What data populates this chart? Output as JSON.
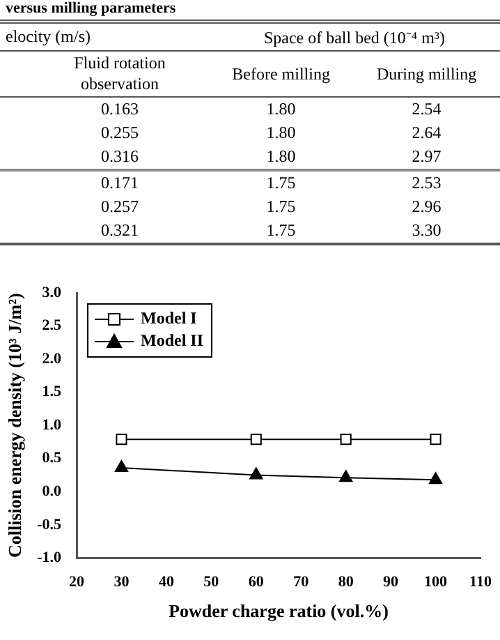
{
  "chart_data": [
    {
      "type": "other",
      "title": "versus milling parameters",
      "annotations": [
        "elocity (m/s)",
        "Space of ball bed (10⁻⁴ m³)",
        "Fluid rotation observation",
        "Before milling",
        "During milling",
        "0.163",
        "1.80",
        "2.54",
        "0.255",
        "1.80",
        "2.64",
        "0.316",
        "1.80",
        "2.97",
        "0.171",
        "1.75",
        "2.53",
        "0.257",
        "1.75",
        "2.96",
        "0.321",
        "1.75",
        "3.30"
      ]
    },
    {
      "type": "line",
      "xlabel": "Powder charge ratio (vol.%)",
      "ylabel": "Collision energy density (10³ J/m²)",
      "x": [
        30,
        60,
        80,
        100
      ],
      "series": [
        {
          "name": "Model I",
          "color": "#000000",
          "marker": "square",
          "values": [
            0.79,
            0.79,
            0.79,
            0.79
          ]
        },
        {
          "name": "Model II",
          "color": "#000000",
          "marker": "triangle",
          "values": [
            0.36,
            0.25,
            0.21,
            0.18
          ]
        }
      ],
      "xlim": [
        20,
        110
      ],
      "xticks": [
        20,
        30,
        40,
        50,
        60,
        70,
        80,
        90,
        100,
        110
      ],
      "ylim": [
        -1,
        3
      ],
      "yticks": [
        {
          "value": -1,
          "label": "-1.0"
        },
        {
          "value": -0.5,
          "label": "-0.5"
        },
        {
          "value": 0,
          "label": "0.0"
        },
        {
          "value": 0.5,
          "label": "0.5"
        },
        {
          "value": 1,
          "label": "1.0"
        },
        {
          "value": 1.5,
          "label": "1.5"
        },
        {
          "value": 2,
          "label": "2.0"
        },
        {
          "value": 2.5,
          "label": "2.5"
        },
        {
          "value": 3,
          "label": "3.0"
        }
      ],
      "grid": false,
      "legend": "top left"
    }
  ]
}
